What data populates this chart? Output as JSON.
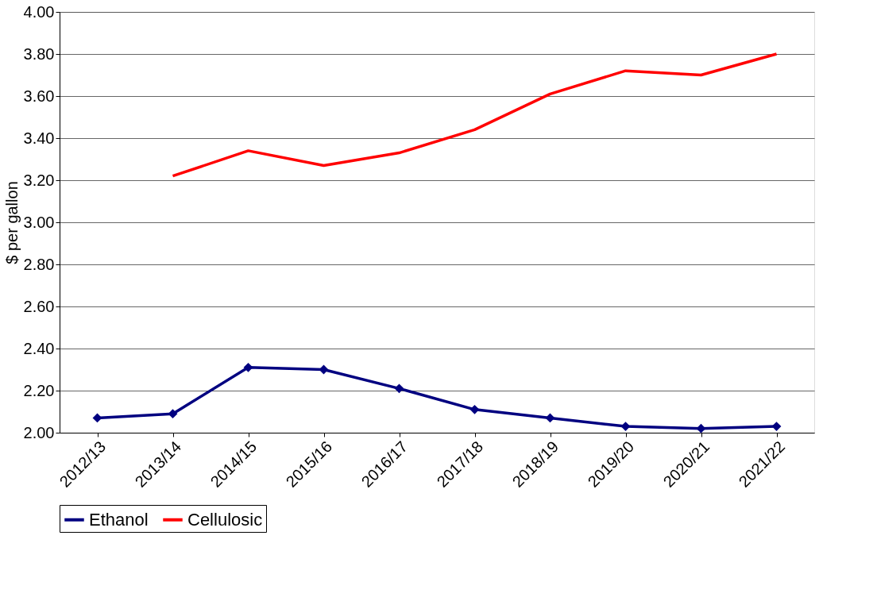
{
  "chart_data": {
    "type": "line",
    "ylabel": "$ per gallon",
    "categories": [
      "2012/13",
      "2013/14",
      "2014/15",
      "2015/16",
      "2016/17",
      "2017/18",
      "2018/19",
      "2019/20",
      "2020/21",
      "2021/22"
    ],
    "series": [
      {
        "name": "Ethanol",
        "color": "#000080",
        "marker": "diamond",
        "values": [
          2.07,
          2.09,
          2.31,
          2.3,
          2.21,
          2.11,
          2.07,
          2.03,
          2.02,
          2.03
        ]
      },
      {
        "name": "Cellulosic",
        "color": "#ff0000",
        "marker": "none",
        "values": [
          null,
          3.22,
          3.34,
          3.27,
          3.33,
          3.44,
          3.61,
          3.72,
          3.7,
          3.8
        ]
      }
    ],
    "ylim": [
      2.0,
      4.0
    ],
    "yticks": [
      {
        "value": 2.0,
        "label": "2.00"
      },
      {
        "value": 2.2,
        "label": "2.20"
      },
      {
        "value": 2.4,
        "label": "2.40"
      },
      {
        "value": 2.6,
        "label": "2.60"
      },
      {
        "value": 2.8,
        "label": "2.80"
      },
      {
        "value": 3.0,
        "label": "3.00"
      },
      {
        "value": 3.2,
        "label": "3.20"
      },
      {
        "value": 3.4,
        "label": "3.40"
      },
      {
        "value": 3.6,
        "label": "3.60"
      },
      {
        "value": 3.8,
        "label": "3.80"
      },
      {
        "value": 4.0,
        "label": "4.00"
      }
    ],
    "grid": "y",
    "legend": "bottom",
    "line_style": "solid"
  }
}
